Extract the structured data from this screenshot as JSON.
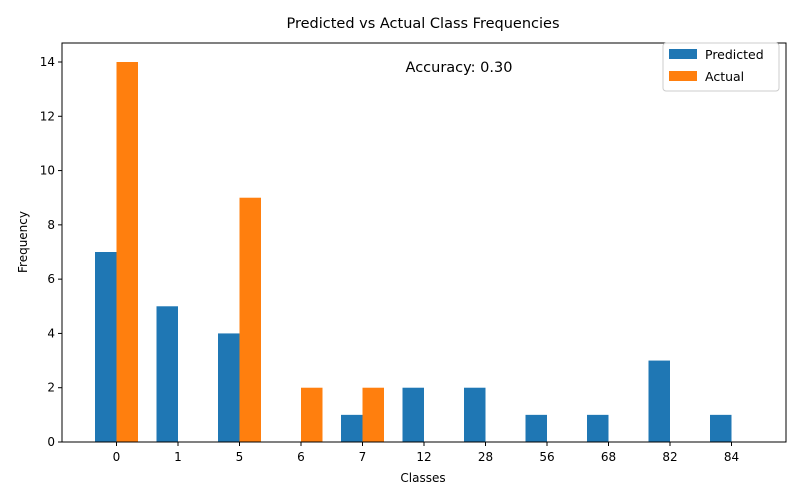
{
  "chart_data": {
    "type": "bar",
    "title": "Predicted vs Actual Class Frequencies",
    "xlabel": "Classes",
    "ylabel": "Frequency",
    "categories": [
      "0",
      "1",
      "5",
      "6",
      "7",
      "12",
      "28",
      "56",
      "68",
      "82",
      "84"
    ],
    "series": [
      {
        "name": "Predicted",
        "color": "#1f77b4",
        "values": [
          7,
          5,
          4,
          0,
          1,
          2,
          2,
          1,
          1,
          3,
          1
        ]
      },
      {
        "name": "Actual",
        "color": "#ff7f0e",
        "values": [
          14,
          0,
          9,
          2,
          2,
          0,
          0,
          0,
          0,
          0,
          0
        ]
      }
    ],
    "ylim": [
      0,
      14.7
    ],
    "yticks": [
      0,
      2,
      4,
      6,
      8,
      10,
      12,
      14
    ],
    "grid": false,
    "legend_position": "top-right",
    "annotation": "Accuracy: 0.30"
  }
}
